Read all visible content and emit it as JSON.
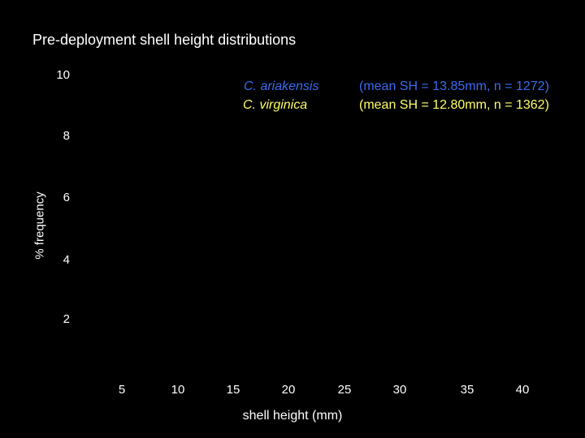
{
  "chart_data": {
    "type": "bar",
    "title": "Pre-deployment shell height distributions",
    "xlabel": "shell height (mm)",
    "ylabel": "% frequency",
    "x_ticks": [
      "5",
      "10",
      "15",
      "20",
      "25",
      "30",
      "35",
      "40"
    ],
    "y_ticks": [
      "10",
      "8",
      "6",
      "4",
      "2"
    ],
    "ylim": [
      0,
      10
    ],
    "grid": false,
    "legend_position": "top-right",
    "series": [
      {
        "name": "C. ariakensis",
        "stats": "(mean SH = 13.85mm, n = 1272)",
        "color": "#3a6cf0",
        "values": []
      },
      {
        "name": "C. virginica",
        "stats": "(mean SH = 12.80mm, n = 1362)",
        "color": "#ffff66",
        "values": []
      }
    ]
  }
}
